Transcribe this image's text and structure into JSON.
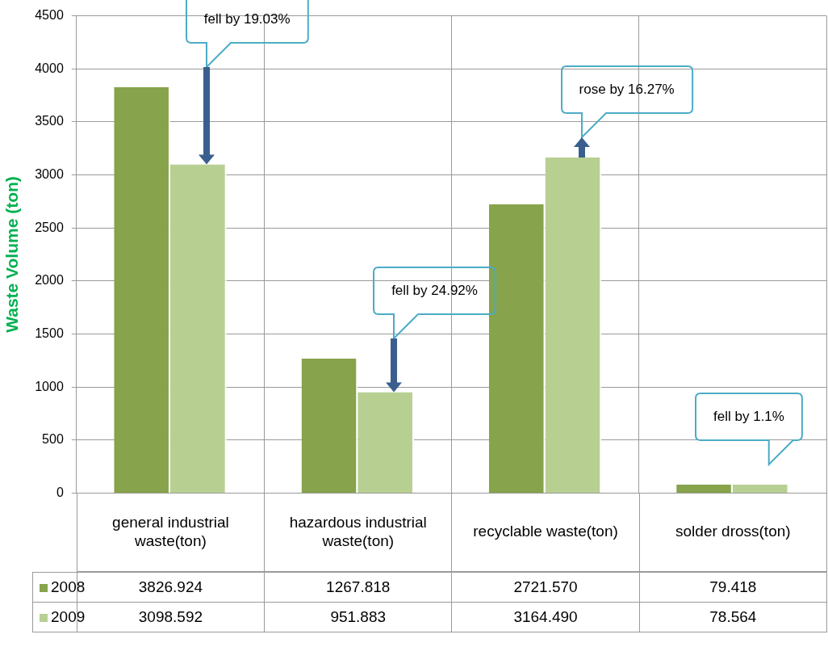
{
  "chart_data": {
    "type": "bar",
    "ylabel": "Waste Volume (ton)",
    "categories": [
      "general industrial waste(ton)",
      "hazardous industrial waste(ton)",
      "recyclable waste(ton)",
      "solder dross(ton)"
    ],
    "series": [
      {
        "name": "2008",
        "color": "#87a34b",
        "values": [
          3826.924,
          1267.818,
          2721.57,
          79.418
        ],
        "value_labels": [
          "3826.924",
          "1267.818",
          "2721.570",
          "79.418"
        ]
      },
      {
        "name": "2009",
        "color": "#b8cf92",
        "values": [
          3098.592,
          951.883,
          3164.49,
          78.564
        ],
        "value_labels": [
          "3098.592",
          "951.883",
          "3164.490",
          "78.564"
        ]
      }
    ],
    "ylim": [
      0,
      4500
    ],
    "yticks": [
      0,
      500,
      1000,
      1500,
      2000,
      2500,
      3000,
      3500,
      4000,
      4500
    ],
    "grid": true,
    "legend": "bottom left",
    "annotations": [
      "fell by 19.03%",
      "fell by 24.92%",
      "rose by 16.27%",
      "fell by 1.1%"
    ]
  }
}
